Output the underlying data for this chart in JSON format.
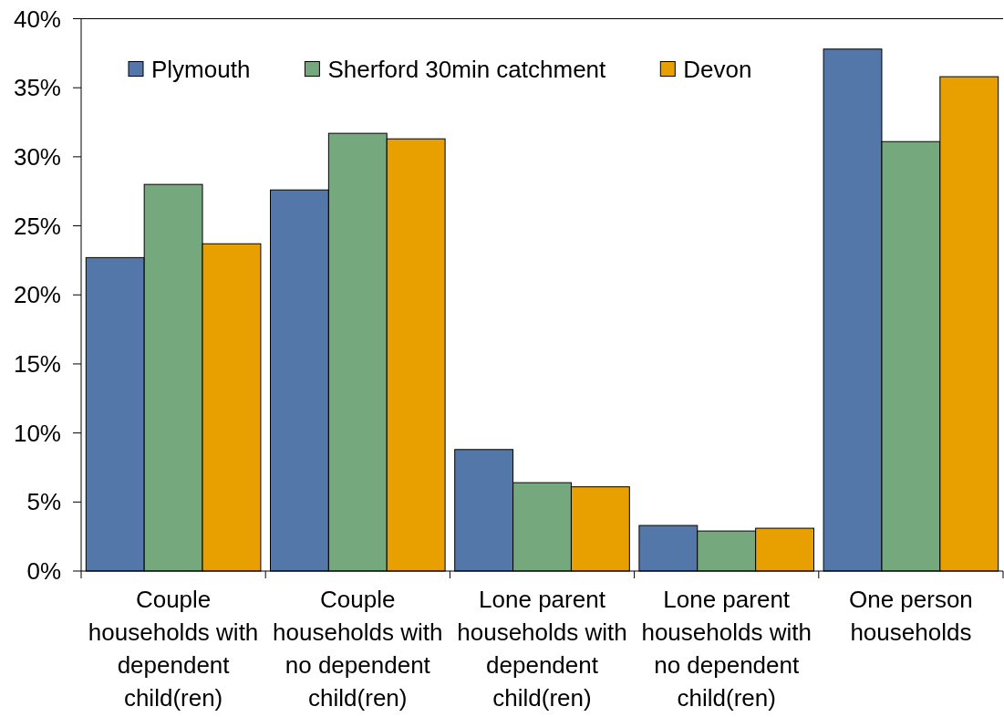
{
  "chart_data": {
    "type": "bar",
    "categories": [
      "Couple households with dependent child(ren)",
      "Couple households with no dependent child(ren)",
      "Lone parent households with dependent child(ren)",
      "Lone parent households with no dependent child(ren)",
      "One person households"
    ],
    "series": [
      {
        "name": "Plymouth",
        "color": "#5377a8",
        "values": [
          22.7,
          27.6,
          8.8,
          3.3,
          37.8
        ]
      },
      {
        "name": "Sherford 30min catchment",
        "color": "#75a87d",
        "values": [
          28.0,
          31.7,
          6.4,
          2.9,
          31.1
        ]
      },
      {
        "name": "Devon",
        "color": "#e89f00",
        "values": [
          23.7,
          31.3,
          6.1,
          3.1,
          35.8
        ]
      }
    ],
    "ylim": [
      0,
      40
    ],
    "yticks": [
      {
        "value": 0,
        "label": "0%"
      },
      {
        "value": 5,
        "label": "5%"
      },
      {
        "value": 10,
        "label": "10%"
      },
      {
        "value": 15,
        "label": "15%"
      },
      {
        "value": 20,
        "label": "20%"
      },
      {
        "value": 25,
        "label": "25%"
      },
      {
        "value": 30,
        "label": "30%"
      },
      {
        "value": 35,
        "label": "35%"
      },
      {
        "value": 40,
        "label": "40%"
      }
    ],
    "legend": "top left"
  }
}
